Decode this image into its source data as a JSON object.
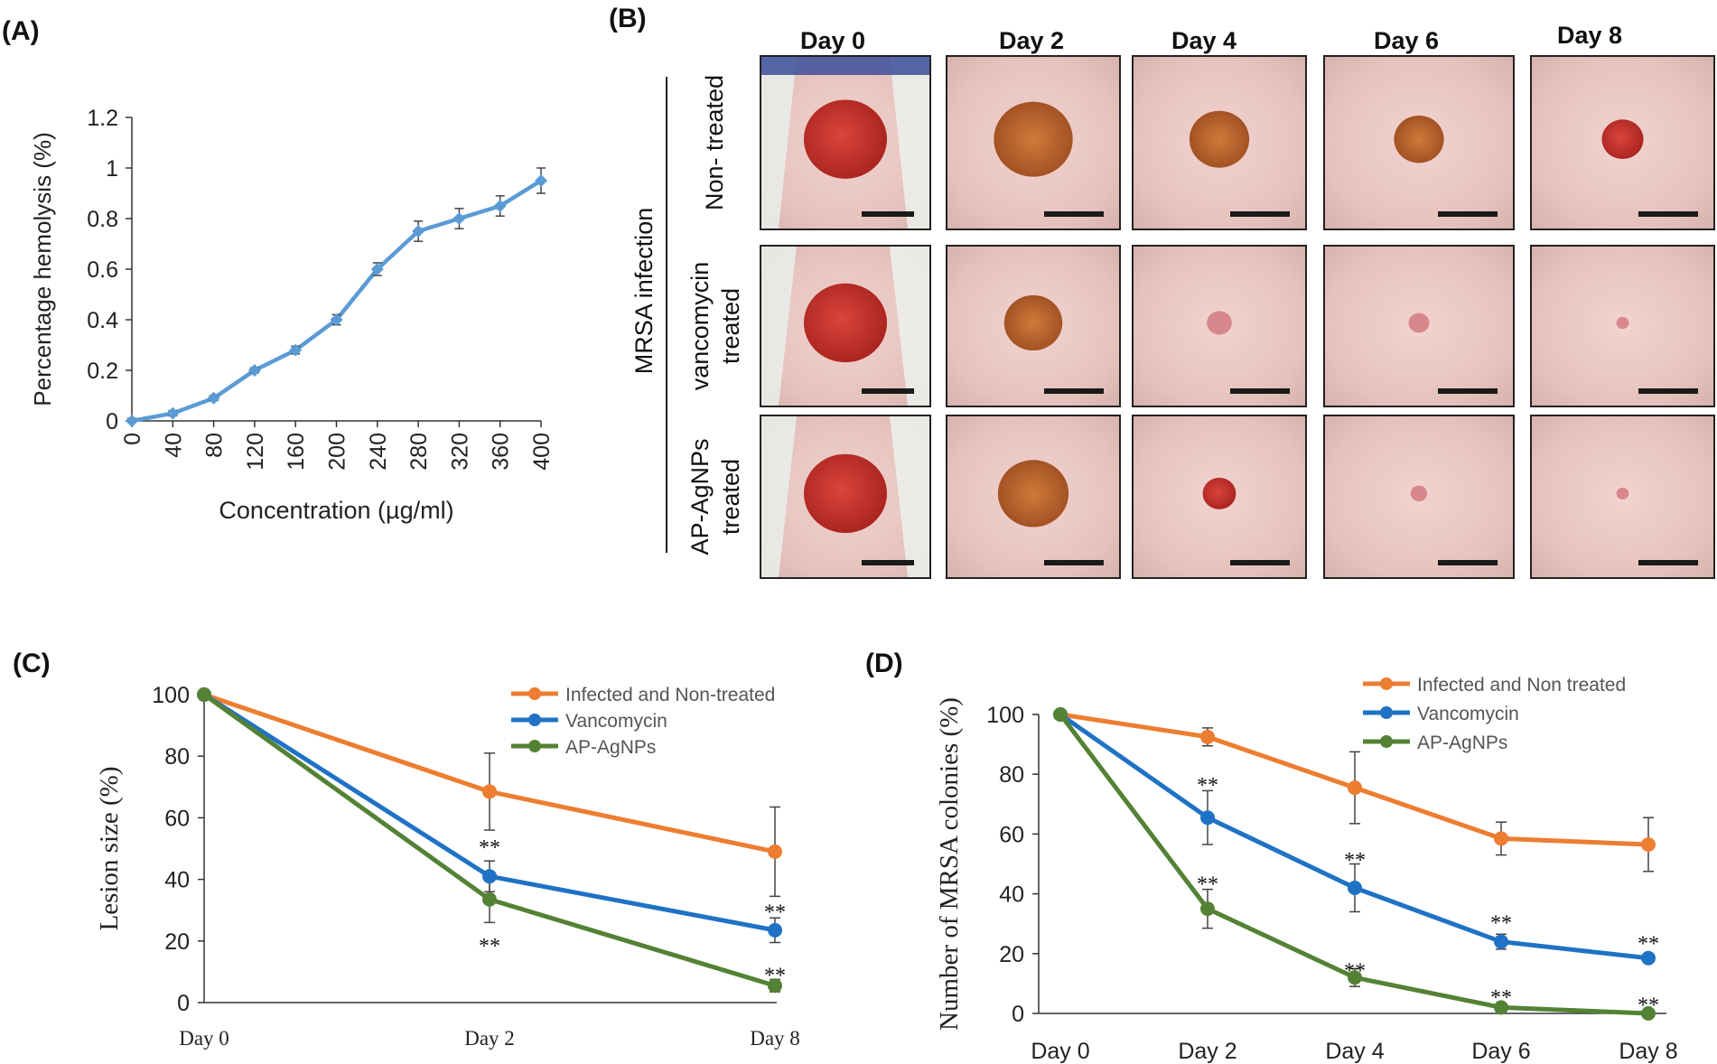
{
  "panels": {
    "A": "(A)",
    "B": "(B)",
    "C": "(C)",
    "D": "(D)"
  },
  "colors": {
    "orange": "#ED7D31",
    "blue": "#1F72C4",
    "green": "#548235",
    "lightblue": "#5B9BD5"
  },
  "panelB": {
    "days": [
      "Day 0",
      "Day 2",
      "Day 4",
      "Day 6",
      "Day 8"
    ],
    "infection_label": "MRSA infection",
    "row_labels": [
      [
        "Non- treated"
      ],
      [
        "vancomycin",
        "treated"
      ],
      [
        "AP-AgNPs",
        "treated"
      ]
    ],
    "wound_size": [
      [
        1.0,
        0.95,
        0.72,
        0.6,
        0.5
      ],
      [
        1.0,
        0.7,
        0.3,
        0.25,
        0.15
      ],
      [
        1.0,
        0.85,
        0.4,
        0.2,
        0.15
      ]
    ]
  },
  "chart_data": [
    {
      "id": "A",
      "type": "line",
      "title": "",
      "xlabel": "Concentration (µg/ml)",
      "ylabel": "Percentage hemolysis (%)",
      "categories": [
        "0",
        "40",
        "80",
        "120",
        "160",
        "200",
        "240",
        "280",
        "320",
        "360",
        "400"
      ],
      "yticks": [
        "0",
        "0.2",
        "0.4",
        "0.6",
        "0.8",
        "1",
        "1.2"
      ],
      "ylim": [
        0,
        1.2
      ],
      "series": [
        {
          "name": "Hemolysis",
          "color": "#5B9BD5",
          "values": [
            0,
            0.03,
            0.09,
            0.2,
            0.28,
            0.4,
            0.6,
            0.75,
            0.8,
            0.85,
            0.95
          ],
          "errors": [
            0.01,
            0.01,
            0.01,
            0.01,
            0.015,
            0.02,
            0.025,
            0.04,
            0.04,
            0.04,
            0.05
          ]
        }
      ]
    },
    {
      "id": "C",
      "type": "line",
      "xlabel": "",
      "ylabel": "Lesion size  (%)",
      "categories": [
        "Day 0",
        "Day 2",
        "Day 8"
      ],
      "yticks": [
        "0",
        "20",
        "40",
        "60",
        "80",
        "100"
      ],
      "ylim": [
        0,
        100
      ],
      "legend": [
        "Infected and Non-treated",
        "Vancomycin",
        "AP-AgNPs"
      ],
      "series": [
        {
          "name": "Infected and Non-treated",
          "color": "#ED7D31",
          "values": [
            100,
            68.5,
            49
          ],
          "errors": [
            0,
            12.5,
            14.5
          ]
        },
        {
          "name": "Vancomycin",
          "color": "#1F72C4",
          "values": [
            100,
            41,
            23.5
          ],
          "errors": [
            0,
            5,
            4
          ]
        },
        {
          "name": "AP-AgNPs",
          "color": "#548235",
          "values": [
            100,
            33.5,
            5.5
          ],
          "errors": [
            0,
            7.5,
            2
          ]
        }
      ],
      "annotations": [
        {
          "text": "**",
          "x": 1,
          "y": 51
        },
        {
          "text": "**",
          "x": 1,
          "y": 19
        },
        {
          "text": "**",
          "x": 2,
          "y": 30
        },
        {
          "text": "**",
          "x": 2,
          "y": 9.5
        }
      ]
    },
    {
      "id": "D",
      "type": "line",
      "xlabel": "",
      "ylabel": "Number of MRSA colonies (%)",
      "categories": [
        "Day 0",
        "Day 2",
        "Day 4",
        "Day 6",
        "Day 8"
      ],
      "yticks": [
        "0",
        "20",
        "40",
        "60",
        "80",
        "100"
      ],
      "ylim": [
        0,
        100
      ],
      "legend": [
        "Infected and Non treated",
        "Vancomycin",
        "AP-AgNPs"
      ],
      "series": [
        {
          "name": "Infected and Non treated",
          "color": "#ED7D31",
          "values": [
            100,
            92.5,
            75.5,
            58.5,
            56.5
          ],
          "errors": [
            0,
            3,
            12,
            5.5,
            9
          ]
        },
        {
          "name": "Vancomycin",
          "color": "#1F72C4",
          "values": [
            100,
            65.5,
            42,
            24,
            18.5
          ],
          "errors": [
            0,
            9,
            8,
            2.5,
            1
          ]
        },
        {
          "name": "AP-AgNPs",
          "color": "#548235",
          "values": [
            100,
            35,
            12,
            2,
            0
          ],
          "errors": [
            0,
            6.5,
            3,
            1,
            0
          ]
        }
      ],
      "annotations": [
        {
          "text": "**",
          "x": 1,
          "y": 77
        },
        {
          "text": "**",
          "x": 1,
          "y": 44
        },
        {
          "text": "**",
          "x": 2,
          "y": 52
        },
        {
          "text": "**",
          "x": 2,
          "y": 15
        },
        {
          "text": "**",
          "x": 3,
          "y": 31
        },
        {
          "text": "**",
          "x": 3,
          "y": 6
        },
        {
          "text": "**",
          "x": 4,
          "y": 24
        },
        {
          "text": "**",
          "x": 4,
          "y": 3.5
        }
      ]
    }
  ]
}
